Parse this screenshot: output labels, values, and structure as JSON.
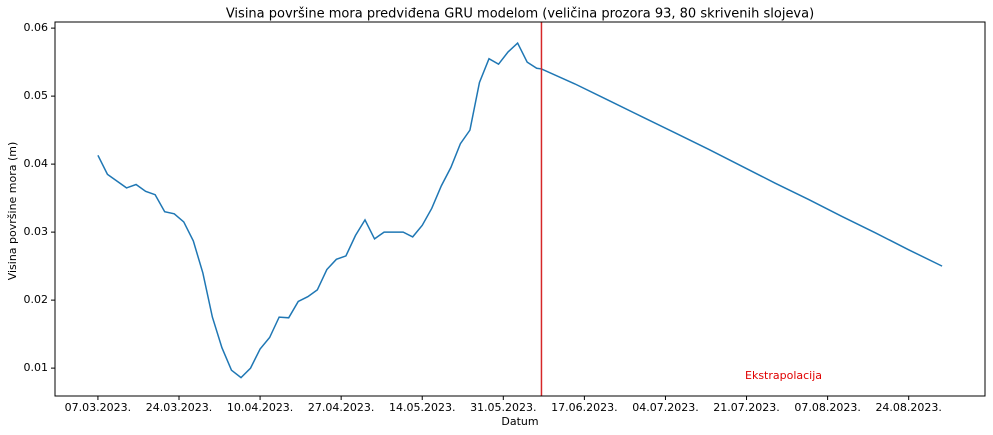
{
  "chart_data": {
    "type": "line",
    "title": "Visina površine mora predviđena GRU modelom (veličina prozora 93, 80 skrivenih slojeva)",
    "x_label": "Datum",
    "y_label": "Visina površine mora (m)",
    "annotation": "Ekstrapolacija",
    "annotation_color": "#e00000",
    "vline": "08.06.2023.",
    "vline_color": "#d62728",
    "xlim": [
      "26.02.2023.",
      "09.09.2023."
    ],
    "xticks": [
      "07.03.2023.",
      "24.03.2023.",
      "10.04.2023.",
      "27.04.2023.",
      "14.05.2023.",
      "31.05.2023.",
      "17.06.2023.",
      "04.07.2023.",
      "21.07.2023.",
      "07.08.2023.",
      "24.08.2023."
    ],
    "ylim": [
      0.0059,
      0.0609
    ],
    "yticks": [
      0.01,
      0.02,
      0.03,
      0.04,
      0.05,
      0.06
    ],
    "x": [
      "07.03.2023.",
      "09.03.2023.",
      "11.03.2023.",
      "13.03.2023.",
      "15.03.2023.",
      "17.03.2023.",
      "19.03.2023.",
      "21.03.2023.",
      "23.03.2023.",
      "25.03.2023.",
      "27.03.2023.",
      "29.03.2023.",
      "31.03.2023.",
      "02.04.2023.",
      "04.04.2023.",
      "06.04.2023.",
      "08.04.2023.",
      "10.04.2023.",
      "12.04.2023.",
      "14.04.2023.",
      "16.04.2023.",
      "18.04.2023.",
      "20.04.2023.",
      "22.04.2023.",
      "24.04.2023.",
      "26.04.2023.",
      "28.04.2023.",
      "30.04.2023.",
      "02.05.2023.",
      "04.05.2023.",
      "06.05.2023.",
      "08.05.2023.",
      "10.05.2023.",
      "12.05.2023.",
      "14.05.2023.",
      "16.05.2023.",
      "18.05.2023.",
      "20.05.2023.",
      "22.05.2023.",
      "24.05.2023.",
      "26.05.2023.",
      "28.05.2023.",
      "30.05.2023.",
      "01.06.2023.",
      "03.06.2023.",
      "05.06.2023.",
      "07.06.2023.",
      "08.06.2023.",
      "15.06.2023.",
      "22.06.2023.",
      "29.06.2023.",
      "06.07.2023.",
      "13.07.2023.",
      "20.07.2023.",
      "27.07.2023.",
      "03.08.2023.",
      "10.08.2023.",
      "17.08.2023.",
      "24.08.2023.",
      "31.08.2023."
    ],
    "series": [
      {
        "color": "#1f77b4",
        "values": [
          0.0413,
          0.0385,
          0.0375,
          0.0365,
          0.037,
          0.036,
          0.0355,
          0.033,
          0.0327,
          0.0315,
          0.0287,
          0.024,
          0.0175,
          0.013,
          0.0097,
          0.0086,
          0.01,
          0.0128,
          0.0145,
          0.0175,
          0.0174,
          0.0198,
          0.0205,
          0.0215,
          0.0245,
          0.026,
          0.0265,
          0.0295,
          0.0318,
          0.029,
          0.03,
          0.03,
          0.03,
          0.0293,
          0.031,
          0.0335,
          0.0368,
          0.0395,
          0.043,
          0.045,
          0.052,
          0.0555,
          0.0547,
          0.0565,
          0.0578,
          0.055,
          0.0541,
          0.054,
          0.0518,
          0.0494,
          0.047,
          0.0446,
          0.0422,
          0.0397,
          0.0372,
          0.0348,
          0.0323,
          0.0299,
          0.0274,
          0.025
        ]
      }
    ]
  }
}
